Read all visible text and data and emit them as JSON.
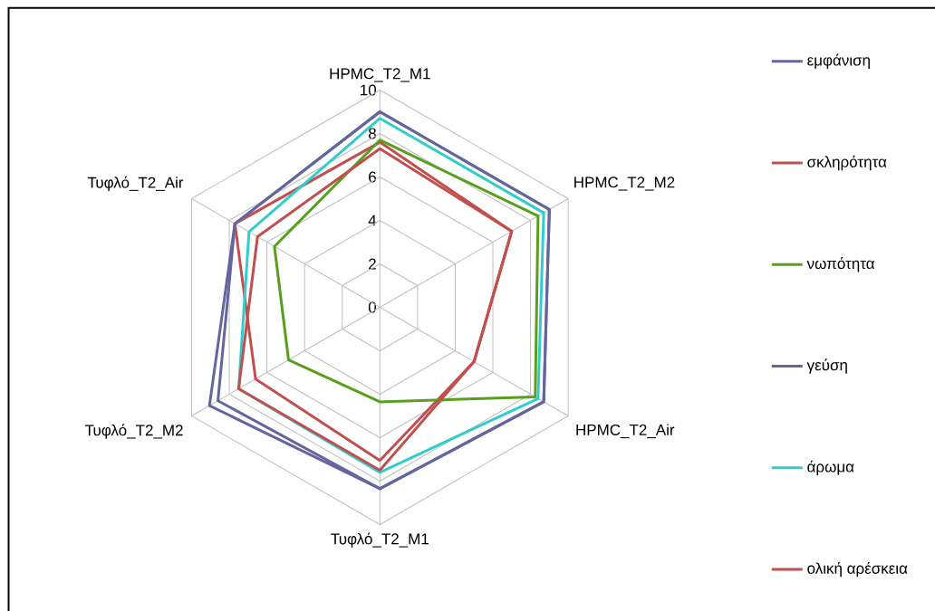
{
  "chart_data": {
    "type": "radar",
    "categories": [
      "HPMC_T2_M1",
      "HPMC_T2_M2",
      "HPMC_T2_Air",
      "Τυφλό_T2_M1",
      "Τυφλό_T2_M2",
      "Τυφλό_T2_Air"
    ],
    "series": [
      {
        "name": "εμφάνιση",
        "color": "#65659E",
        "values": [
          9.0,
          9.0,
          8.7,
          8.35,
          9.05,
          7.7
        ]
      },
      {
        "name": "σκληρότητα",
        "color": "#C0504D",
        "values": [
          7.6,
          7.0,
          5.0,
          7.05,
          6.6,
          7.7
        ]
      },
      {
        "name": "νωπότητα",
        "color": "#5A9E1E",
        "values": [
          7.7,
          8.4,
          8.25,
          4.35,
          4.85,
          5.6
        ]
      },
      {
        "name": "γεύση",
        "color": "#65659E",
        "values": [
          9.0,
          9.0,
          8.7,
          8.35,
          8.6,
          7.7
        ]
      },
      {
        "name": "άρωμα",
        "color": "#33CCCC",
        "values": [
          8.7,
          8.7,
          8.4,
          7.6,
          7.5,
          6.95
        ]
      },
      {
        "name": "ολική αρέσκεια",
        "color": "#C0504D",
        "values": [
          7.3,
          7.0,
          5.0,
          7.5,
          7.5,
          6.5
        ]
      }
    ],
    "ylim": [
      0,
      10
    ],
    "yticks": [
      0,
      2,
      4,
      6,
      8,
      10
    ],
    "grid": true,
    "legend": "right"
  }
}
